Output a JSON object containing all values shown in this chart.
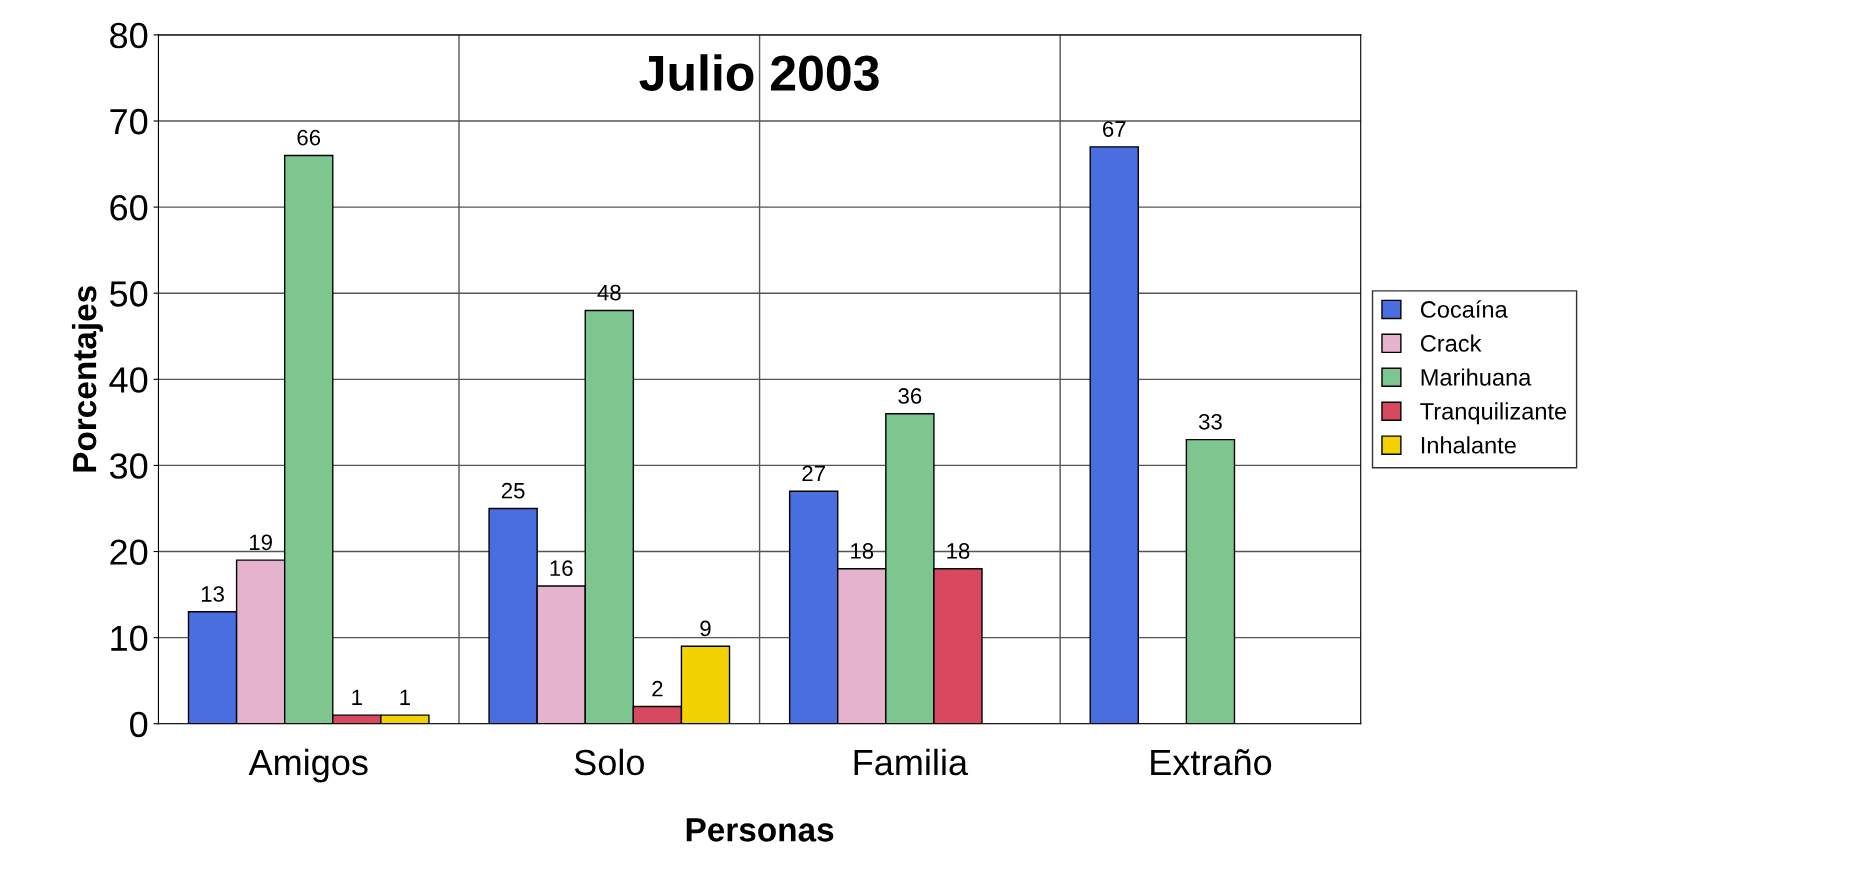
{
  "chart_data": {
    "type": "bar",
    "title": "Julio 2003",
    "xlabel": "Personas",
    "ylabel": "Porcentajes",
    "categories": [
      "Amigos",
      "Solo",
      "Familia",
      "Extraño"
    ],
    "series": [
      {
        "name": "Cocaína",
        "color": "#4a6ee0",
        "values": [
          13,
          25,
          27,
          67
        ]
      },
      {
        "name": "Crack",
        "color": "#e6b3cf",
        "values": [
          19,
          16,
          18,
          null
        ]
      },
      {
        "name": "Marihuana",
        "color": "#7dc690",
        "values": [
          66,
          48,
          36,
          33
        ]
      },
      {
        "name": "Tranquilizante",
        "color": "#d8485e",
        "values": [
          1,
          2,
          18,
          null
        ]
      },
      {
        "name": "Inhalante",
        "color": "#f2d200",
        "values": [
          1,
          9,
          null,
          null
        ]
      }
    ],
    "ylim": [
      0,
      80
    ],
    "yticks": [
      0,
      10,
      20,
      30,
      40,
      50,
      60,
      70,
      80
    ],
    "grid": true,
    "legend": "right",
    "data_labels": true
  }
}
